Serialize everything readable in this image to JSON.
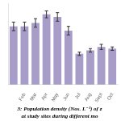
{
  "chart_data": {
    "type": "bar",
    "categories": [
      null,
      "Feb",
      "Mar",
      "Apr",
      "May",
      "Jun",
      "Jul",
      "Aug",
      "Sept",
      "Oct"
    ],
    "values": [
      68,
      68,
      72,
      82,
      79,
      63,
      36,
      40,
      44,
      42
    ],
    "errors": [
      5,
      5,
      5,
      4,
      5,
      5,
      2,
      2,
      3,
      2
    ],
    "color": "#a89dc8",
    "ylim": [
      0,
      95
    ],
    "grid": false,
    "tick_labels": "x",
    "annotations": [
      "3: Population density (Nos. L⁻¹) of z",
      "at study sites during different mo"
    ]
  }
}
